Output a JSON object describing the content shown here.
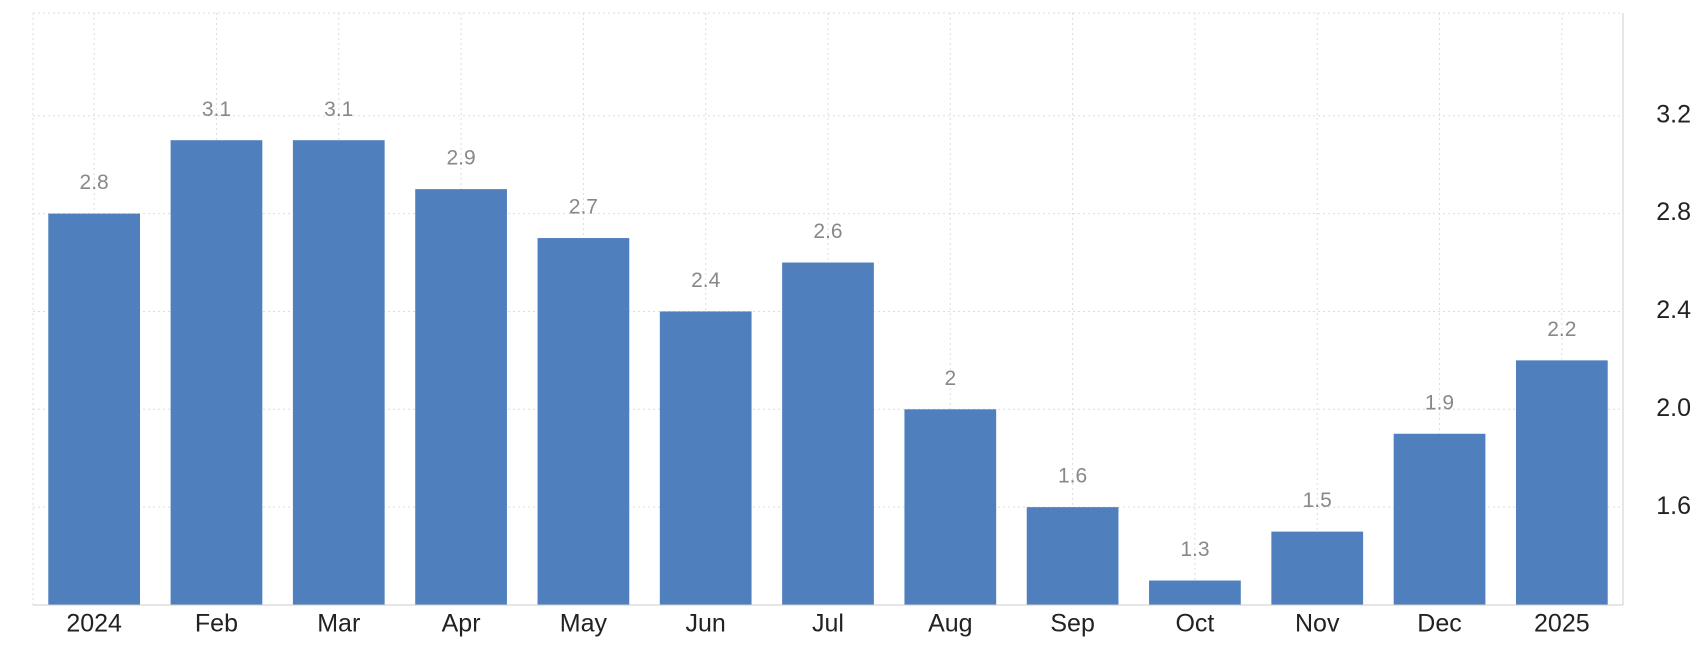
{
  "chart_data": {
    "type": "bar",
    "categories": [
      "2024",
      "Feb",
      "Mar",
      "Apr",
      "May",
      "Jun",
      "Jul",
      "Aug",
      "Sep",
      "Oct",
      "Nov",
      "Dec",
      "2025"
    ],
    "values": [
      2.8,
      3.1,
      3.1,
      2.9,
      2.7,
      2.4,
      2.6,
      2,
      1.6,
      1.3,
      1.5,
      1.9,
      2.2
    ],
    "color": "#4f7fbd",
    "ylim": [
      1.2,
      3.62
    ],
    "yticks": [
      1.6,
      {
        "value": 2,
        "label": "2.0"
      },
      2.4,
      2.8,
      3.2
    ],
    "grid": true
  }
}
